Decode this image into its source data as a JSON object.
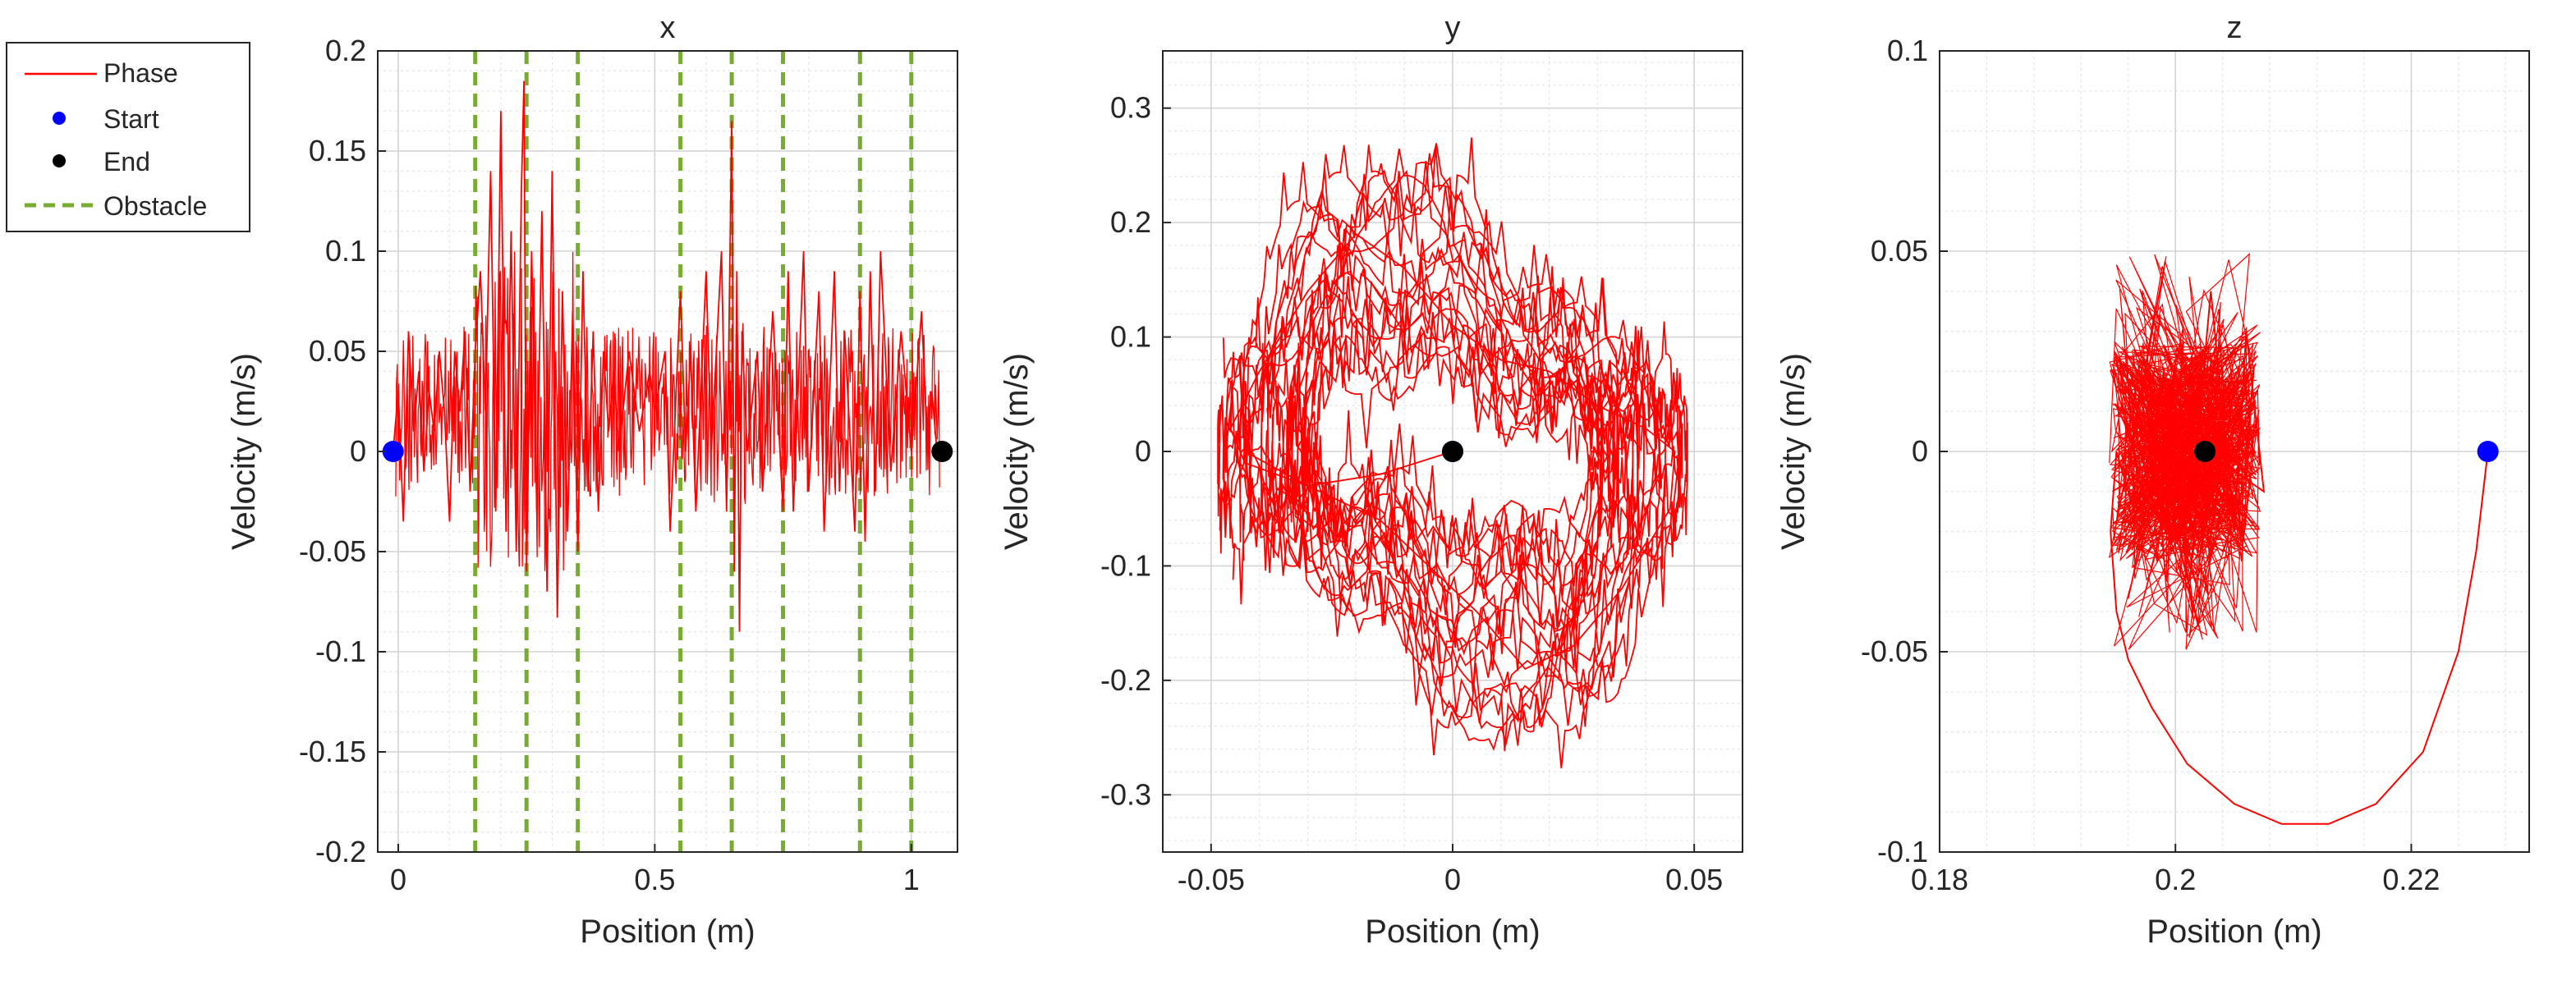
{
  "legend": {
    "entries": [
      {
        "label": "Phase",
        "style": "line",
        "color": "#ff0000"
      },
      {
        "label": "Start",
        "style": "dot",
        "color": "#0000ff"
      },
      {
        "label": "End",
        "style": "dot",
        "color": "#000000"
      },
      {
        "label": "Obstacle",
        "style": "dashed",
        "color": "#77ac30"
      }
    ]
  },
  "chart_data": [
    {
      "type": "line",
      "title": "x",
      "xlabel": "Position (m)",
      "ylabel": "Velocity (m/s)",
      "xlim": [
        -0.04,
        1.09
      ],
      "ylim": [
        -0.2,
        0.2
      ],
      "xticks": [
        0,
        0.5,
        1
      ],
      "xtick_labels": [
        "0",
        "0.5",
        "1"
      ],
      "yticks": [
        -0.2,
        -0.15,
        -0.1,
        -0.05,
        0,
        0.05,
        0.1,
        0.15,
        0.2
      ],
      "ytick_labels": [
        "-0.2",
        "-0.15",
        "-0.1",
        "-0.05",
        "0",
        "0.05",
        "0.1",
        "0.15",
        "0.2"
      ],
      "grid": true,
      "obstacles": [
        0.15,
        0.25,
        0.35,
        0.55,
        0.65,
        0.75,
        0.9,
        1.0
      ],
      "start": [
        -0.01,
        0
      ],
      "end": [
        1.06,
        0
      ],
      "series": [
        {
          "name": "Phase",
          "points": [
            [
              -0.01,
              0
            ],
            [
              0,
              0.03
            ],
            [
              0.01,
              -0.035
            ],
            [
              0.02,
              0.06
            ],
            [
              0.03,
              0.01
            ],
            [
              0.04,
              0.04
            ],
            [
              0.05,
              -0.01
            ],
            [
              0.06,
              0.03
            ],
            [
              0.07,
              0.01
            ],
            [
              0.08,
              0.05
            ],
            [
              0.09,
              0.02
            ],
            [
              0.1,
              -0.035
            ],
            [
              0.11,
              0.05
            ],
            [
              0.12,
              0.02
            ],
            [
              0.13,
              0.06
            ],
            [
              0.14,
              -0.02
            ],
            [
              0.15,
              0.05
            ],
            [
              0.16,
              0.09
            ],
            [
              0.17,
              0.02
            ],
            [
              0.18,
              0.14
            ],
            [
              0.19,
              -0.03
            ],
            [
              0.2,
              0.17
            ],
            [
              0.21,
              -0.04
            ],
            [
              0.22,
              0.11
            ],
            [
              0.23,
              -0.05
            ],
            [
              0.24,
              0.13
            ],
            [
              0.245,
              0.185
            ],
            [
              0.25,
              -0.06
            ],
            [
              0.26,
              0.1
            ],
            [
              0.27,
              -0.03
            ],
            [
              0.28,
              0.12
            ],
            [
              0.29,
              -0.07
            ],
            [
              0.3,
              0.14
            ],
            [
              0.31,
              -0.083
            ],
            [
              0.32,
              0.08
            ],
            [
              0.33,
              -0.04
            ],
            [
              0.34,
              0.07
            ],
            [
              0.35,
              -0.05
            ],
            [
              0.36,
              0.09
            ],
            [
              0.37,
              -0.02
            ],
            [
              0.38,
              0.06
            ],
            [
              0.39,
              -0.03
            ],
            [
              0.4,
              0.05
            ],
            [
              0.41,
              0.01
            ],
            [
              0.42,
              0.04
            ],
            [
              0.43,
              0.0
            ],
            [
              0.45,
              0.05
            ],
            [
              0.47,
              0.01
            ],
            [
              0.49,
              0.04
            ],
            [
              0.5,
              0.02
            ],
            [
              0.52,
              0.05
            ],
            [
              0.53,
              -0.04
            ],
            [
              0.55,
              0.08
            ],
            [
              0.56,
              0.0
            ],
            [
              0.57,
              0.05
            ],
            [
              0.58,
              -0.03
            ],
            [
              0.6,
              0.09
            ],
            [
              0.61,
              0.0
            ],
            [
              0.63,
              0.1
            ],
            [
              0.64,
              -0.03
            ],
            [
              0.65,
              0.165
            ],
            [
              0.655,
              -0.06
            ],
            [
              0.66,
              0.09
            ],
            [
              0.665,
              -0.09
            ],
            [
              0.67,
              0.06
            ],
            [
              0.68,
              0.0
            ],
            [
              0.7,
              0.05
            ],
            [
              0.71,
              -0.02
            ],
            [
              0.73,
              0.07
            ],
            [
              0.75,
              -0.03
            ],
            [
              0.76,
              0.09
            ],
            [
              0.77,
              -0.03
            ],
            [
              0.79,
              0.1
            ],
            [
              0.8,
              -0.02
            ],
            [
              0.82,
              0.08
            ],
            [
              0.83,
              -0.04
            ],
            [
              0.85,
              0.09
            ],
            [
              0.86,
              -0.02
            ],
            [
              0.87,
              0.06
            ],
            [
              0.89,
              -0.04
            ],
            [
              0.9,
              0.08
            ],
            [
              0.91,
              -0.045
            ],
            [
              0.92,
              0.09
            ],
            [
              0.93,
              -0.02
            ],
            [
              0.94,
              0.1
            ],
            [
              0.96,
              -0.01
            ],
            [
              0.98,
              0.06
            ],
            [
              1.0,
              0.0
            ],
            [
              1.02,
              0.07
            ],
            [
              1.03,
              0.01
            ],
            [
              1.04,
              0.03
            ],
            [
              1.05,
              0.0
            ],
            [
              1.06,
              0
            ]
          ]
        }
      ]
    },
    {
      "type": "line",
      "title": "y",
      "xlabel": "Position (m)",
      "ylabel": "Velocity (m/s)",
      "xlim": [
        -0.06,
        0.06
      ],
      "ylim": [
        -0.35,
        0.35
      ],
      "xticks": [
        -0.05,
        0,
        0.05
      ],
      "xtick_labels": [
        "-0.05",
        "0",
        "0.05"
      ],
      "yticks": [
        -0.3,
        -0.2,
        -0.1,
        0,
        0.1,
        0.2,
        0.3
      ],
      "ytick_labels": [
        "-0.3",
        "-0.2",
        "-0.1",
        "0",
        "0.1",
        "0.2",
        "0.3"
      ],
      "grid": true,
      "start": [
        0,
        0
      ],
      "end": [
        0,
        0
      ],
      "series": [
        {
          "name": "Phase",
          "loop": {
            "amplitude_position": 0.045,
            "amplitude_velocity": 0.2,
            "cycles": 18
          },
          "points": [
            [
              0,
              0
            ],
            [
              -0.015,
              -0.02
            ],
            [
              -0.03,
              -0.03
            ],
            [
              -0.043,
              -0.01
            ],
            [
              -0.046,
              0.02
            ],
            [
              -0.04,
              0.07
            ],
            [
              -0.03,
              0.14
            ],
            [
              -0.02,
              0.19
            ],
            [
              -0.01,
              0.16
            ],
            [
              0.0,
              0.11
            ],
            [
              0.01,
              0.08
            ],
            [
              0.02,
              0.07
            ],
            [
              0.03,
              0.04
            ],
            [
              0.04,
              0.02
            ],
            [
              0.046,
              0.0
            ],
            [
              0.045,
              -0.05
            ],
            [
              0.035,
              -0.12
            ],
            [
              0.025,
              -0.17
            ],
            [
              0.015,
              -0.19
            ],
            [
              0.005,
              -0.14
            ],
            [
              -0.005,
              -0.1
            ],
            [
              -0.015,
              -0.06
            ],
            [
              -0.03,
              -0.03
            ],
            [
              -0.043,
              0.0
            ]
          ]
        }
      ]
    },
    {
      "type": "line",
      "title": "z",
      "xlabel": "Position (m)",
      "ylabel": "Velocity (m/s)",
      "xlim": [
        0.18,
        0.23
      ],
      "ylim": [
        -0.1,
        0.1
      ],
      "xticks": [
        0.18,
        0.2,
        0.22
      ],
      "xtick_labels": [
        "0.18",
        "0.2",
        "0.22"
      ],
      "yticks": [
        -0.1,
        -0.05,
        0,
        0.05,
        0.1
      ],
      "ytick_labels": [
        "-0.1",
        "-0.05",
        "0",
        "0.05",
        "0.1"
      ],
      "grid": true,
      "start": [
        0.2265,
        0
      ],
      "end": [
        0.2025,
        0
      ],
      "series": [
        {
          "name": "Phase",
          "points": [
            [
              0.2265,
              0
            ],
            [
              0.2255,
              -0.025
            ],
            [
              0.224,
              -0.05
            ],
            [
              0.221,
              -0.075
            ],
            [
              0.217,
              -0.088
            ],
            [
              0.213,
              -0.093
            ],
            [
              0.209,
              -0.093
            ],
            [
              0.205,
              -0.088
            ],
            [
              0.201,
              -0.078
            ],
            [
              0.198,
              -0.064
            ],
            [
              0.196,
              -0.052
            ],
            [
              0.195,
              -0.04
            ],
            [
              0.1945,
              -0.02
            ],
            [
              0.195,
              0.0
            ],
            [
              0.197,
              -0.02
            ],
            [
              0.199,
              0.02
            ],
            [
              0.201,
              -0.025
            ],
            [
              0.203,
              0.04
            ],
            [
              0.205,
              -0.02
            ],
            [
              0.206,
              0.03
            ],
            [
              0.2075,
              -0.01
            ],
            [
              0.2025,
              0
            ]
          ]
        }
      ]
    }
  ]
}
